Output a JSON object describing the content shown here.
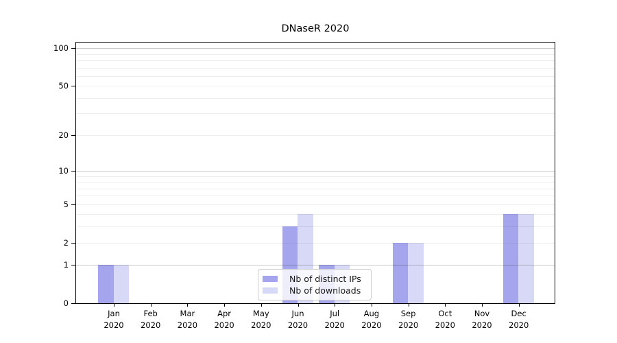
{
  "chart_data": {
    "type": "bar",
    "title": "DNaseR 2020",
    "categories": [
      "Jan",
      "Feb",
      "Mar",
      "Apr",
      "May",
      "Jun",
      "Jul",
      "Aug",
      "Sep",
      "Oct",
      "Nov",
      "Dec"
    ],
    "category_year": "2020",
    "series": [
      {
        "name": "Nb of distinct IPs",
        "color": "#a5a5ed",
        "values": [
          1,
          0,
          0,
          0,
          0,
          3,
          1,
          0,
          2,
          0,
          0,
          4
        ]
      },
      {
        "name": "Nb of downloads",
        "color": "#d8d8f7",
        "values": [
          1,
          0,
          0,
          0,
          0,
          4,
          1,
          0,
          2,
          0,
          0,
          4
        ]
      }
    ],
    "xlabel": "",
    "ylabel": "",
    "scale": "log1p",
    "ylim": [
      0,
      111
    ],
    "y_tick_values": [
      0,
      1,
      2,
      5,
      10,
      20,
      50,
      100
    ],
    "y_tick_labels": [
      "0",
      "1",
      "2",
      "5",
      "10",
      "20",
      "50",
      "100"
    ],
    "major_gridlines": [
      1,
      10,
      100
    ],
    "minor_gridlines": [
      2,
      3,
      4,
      5,
      6,
      7,
      8,
      9,
      20,
      30,
      40,
      50,
      60,
      70,
      80,
      90
    ],
    "grid": true,
    "legend_position": "inside lower center",
    "colors": {
      "distinct_ips_bar": "#a5a5ed",
      "downloads_bar": "#d8d8f7",
      "major_grid": "#c8c8c8",
      "minor_grid": "#ececec",
      "axis_spine": "#000000",
      "legend_border": "#cccccc",
      "text": "#000000"
    }
  }
}
